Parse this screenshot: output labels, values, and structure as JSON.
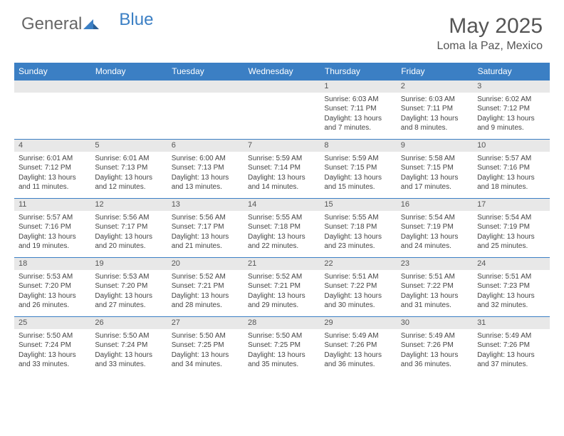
{
  "brand": {
    "part1": "General",
    "part2": "Blue"
  },
  "title": "May 2025",
  "location": "Loma la Paz, Mexico",
  "colors": {
    "header_bg": "#3b7fc4",
    "header_text": "#ffffff",
    "daynum_bg": "#e8e8e8",
    "body_bg": "#ffffff",
    "text": "#444444",
    "brand_blue": "#3b7fc4",
    "brand_gray": "#666666"
  },
  "typography": {
    "title_fontsize": 30,
    "location_fontsize": 16,
    "dayheader_fontsize": 12,
    "daynum_fontsize": 11,
    "detail_fontsize": 10
  },
  "day_headers": [
    "Sunday",
    "Monday",
    "Tuesday",
    "Wednesday",
    "Thursday",
    "Friday",
    "Saturday"
  ],
  "weeks": [
    [
      {
        "n": "",
        "sr": "",
        "ss": "",
        "dl": ""
      },
      {
        "n": "",
        "sr": "",
        "ss": "",
        "dl": ""
      },
      {
        "n": "",
        "sr": "",
        "ss": "",
        "dl": ""
      },
      {
        "n": "",
        "sr": "",
        "ss": "",
        "dl": ""
      },
      {
        "n": "1",
        "sr": "Sunrise: 6:03 AM",
        "ss": "Sunset: 7:11 PM",
        "dl": "Daylight: 13 hours and 7 minutes."
      },
      {
        "n": "2",
        "sr": "Sunrise: 6:03 AM",
        "ss": "Sunset: 7:11 PM",
        "dl": "Daylight: 13 hours and 8 minutes."
      },
      {
        "n": "3",
        "sr": "Sunrise: 6:02 AM",
        "ss": "Sunset: 7:12 PM",
        "dl": "Daylight: 13 hours and 9 minutes."
      }
    ],
    [
      {
        "n": "4",
        "sr": "Sunrise: 6:01 AM",
        "ss": "Sunset: 7:12 PM",
        "dl": "Daylight: 13 hours and 11 minutes."
      },
      {
        "n": "5",
        "sr": "Sunrise: 6:01 AM",
        "ss": "Sunset: 7:13 PM",
        "dl": "Daylight: 13 hours and 12 minutes."
      },
      {
        "n": "6",
        "sr": "Sunrise: 6:00 AM",
        "ss": "Sunset: 7:13 PM",
        "dl": "Daylight: 13 hours and 13 minutes."
      },
      {
        "n": "7",
        "sr": "Sunrise: 5:59 AM",
        "ss": "Sunset: 7:14 PM",
        "dl": "Daylight: 13 hours and 14 minutes."
      },
      {
        "n": "8",
        "sr": "Sunrise: 5:59 AM",
        "ss": "Sunset: 7:15 PM",
        "dl": "Daylight: 13 hours and 15 minutes."
      },
      {
        "n": "9",
        "sr": "Sunrise: 5:58 AM",
        "ss": "Sunset: 7:15 PM",
        "dl": "Daylight: 13 hours and 17 minutes."
      },
      {
        "n": "10",
        "sr": "Sunrise: 5:57 AM",
        "ss": "Sunset: 7:16 PM",
        "dl": "Daylight: 13 hours and 18 minutes."
      }
    ],
    [
      {
        "n": "11",
        "sr": "Sunrise: 5:57 AM",
        "ss": "Sunset: 7:16 PM",
        "dl": "Daylight: 13 hours and 19 minutes."
      },
      {
        "n": "12",
        "sr": "Sunrise: 5:56 AM",
        "ss": "Sunset: 7:17 PM",
        "dl": "Daylight: 13 hours and 20 minutes."
      },
      {
        "n": "13",
        "sr": "Sunrise: 5:56 AM",
        "ss": "Sunset: 7:17 PM",
        "dl": "Daylight: 13 hours and 21 minutes."
      },
      {
        "n": "14",
        "sr": "Sunrise: 5:55 AM",
        "ss": "Sunset: 7:18 PM",
        "dl": "Daylight: 13 hours and 22 minutes."
      },
      {
        "n": "15",
        "sr": "Sunrise: 5:55 AM",
        "ss": "Sunset: 7:18 PM",
        "dl": "Daylight: 13 hours and 23 minutes."
      },
      {
        "n": "16",
        "sr": "Sunrise: 5:54 AM",
        "ss": "Sunset: 7:19 PM",
        "dl": "Daylight: 13 hours and 24 minutes."
      },
      {
        "n": "17",
        "sr": "Sunrise: 5:54 AM",
        "ss": "Sunset: 7:19 PM",
        "dl": "Daylight: 13 hours and 25 minutes."
      }
    ],
    [
      {
        "n": "18",
        "sr": "Sunrise: 5:53 AM",
        "ss": "Sunset: 7:20 PM",
        "dl": "Daylight: 13 hours and 26 minutes."
      },
      {
        "n": "19",
        "sr": "Sunrise: 5:53 AM",
        "ss": "Sunset: 7:20 PM",
        "dl": "Daylight: 13 hours and 27 minutes."
      },
      {
        "n": "20",
        "sr": "Sunrise: 5:52 AM",
        "ss": "Sunset: 7:21 PM",
        "dl": "Daylight: 13 hours and 28 minutes."
      },
      {
        "n": "21",
        "sr": "Sunrise: 5:52 AM",
        "ss": "Sunset: 7:21 PM",
        "dl": "Daylight: 13 hours and 29 minutes."
      },
      {
        "n": "22",
        "sr": "Sunrise: 5:51 AM",
        "ss": "Sunset: 7:22 PM",
        "dl": "Daylight: 13 hours and 30 minutes."
      },
      {
        "n": "23",
        "sr": "Sunrise: 5:51 AM",
        "ss": "Sunset: 7:22 PM",
        "dl": "Daylight: 13 hours and 31 minutes."
      },
      {
        "n": "24",
        "sr": "Sunrise: 5:51 AM",
        "ss": "Sunset: 7:23 PM",
        "dl": "Daylight: 13 hours and 32 minutes."
      }
    ],
    [
      {
        "n": "25",
        "sr": "Sunrise: 5:50 AM",
        "ss": "Sunset: 7:24 PM",
        "dl": "Daylight: 13 hours and 33 minutes."
      },
      {
        "n": "26",
        "sr": "Sunrise: 5:50 AM",
        "ss": "Sunset: 7:24 PM",
        "dl": "Daylight: 13 hours and 33 minutes."
      },
      {
        "n": "27",
        "sr": "Sunrise: 5:50 AM",
        "ss": "Sunset: 7:25 PM",
        "dl": "Daylight: 13 hours and 34 minutes."
      },
      {
        "n": "28",
        "sr": "Sunrise: 5:50 AM",
        "ss": "Sunset: 7:25 PM",
        "dl": "Daylight: 13 hours and 35 minutes."
      },
      {
        "n": "29",
        "sr": "Sunrise: 5:49 AM",
        "ss": "Sunset: 7:26 PM",
        "dl": "Daylight: 13 hours and 36 minutes."
      },
      {
        "n": "30",
        "sr": "Sunrise: 5:49 AM",
        "ss": "Sunset: 7:26 PM",
        "dl": "Daylight: 13 hours and 36 minutes."
      },
      {
        "n": "31",
        "sr": "Sunrise: 5:49 AM",
        "ss": "Sunset: 7:26 PM",
        "dl": "Daylight: 13 hours and 37 minutes."
      }
    ]
  ]
}
